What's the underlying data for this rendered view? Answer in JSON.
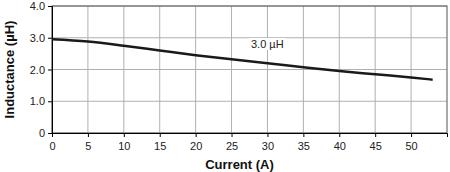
{
  "chart_data": {
    "type": "line",
    "x_label": "Current (A)",
    "y_label": "Inductance (µH)",
    "annotation": "3.0 µH",
    "x": [
      0,
      5,
      10,
      15,
      20,
      25,
      30,
      35,
      40,
      45,
      50,
      53
    ],
    "series": [
      {
        "color": "#1a1a1a",
        "values": [
          2.95,
          2.88,
          2.75,
          2.6,
          2.45,
          2.32,
          2.2,
          2.07,
          1.95,
          1.85,
          1.75,
          1.68
        ]
      }
    ],
    "xlim": [
      0,
      55
    ],
    "xticks": [
      0,
      5,
      10,
      15,
      20,
      25,
      30,
      35,
      40,
      45,
      50
    ],
    "ylim": [
      0,
      4
    ],
    "yticks": [
      0,
      {
        "value": 1,
        "label": "1.0"
      },
      {
        "value": 2,
        "label": "2.0"
      },
      {
        "value": 3,
        "label": "3.0"
      },
      {
        "value": 4,
        "label": "4.0"
      }
    ],
    "grid": true
  }
}
